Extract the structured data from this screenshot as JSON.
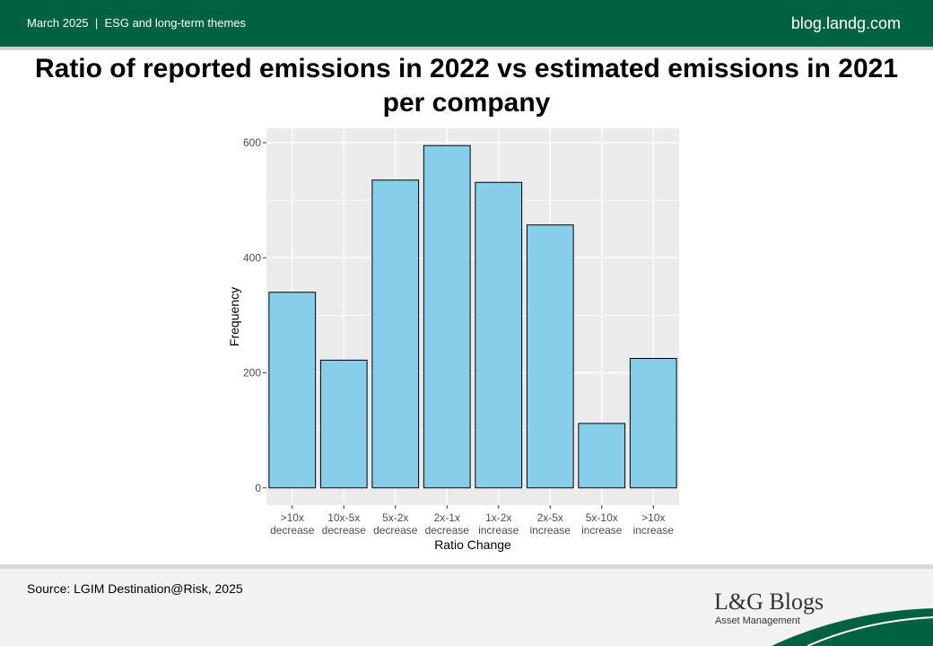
{
  "header": {
    "date": "March 2025",
    "topic": "ESG and long-term themes",
    "site": "blog.landg.com"
  },
  "title": "Ratio of reported emissions in 2022 vs estimated emissions in 2021 per company",
  "chart_data": {
    "type": "bar",
    "categories": [
      ">10x decrease",
      "10x-5x decrease",
      "5x-2x decrease",
      "2x-1x decrease",
      "1x-2x increase",
      "2x-5x increase",
      "5x-10x increase",
      ">10x increase"
    ],
    "category_lines": [
      [
        ">10x",
        "decrease"
      ],
      [
        "10x-5x",
        "decrease"
      ],
      [
        "5x-2x",
        "decrease"
      ],
      [
        "2x-1x",
        "decrease"
      ],
      [
        "1x-2x",
        "increase"
      ],
      [
        "2x-5x",
        "increase"
      ],
      [
        "5x-10x",
        "increase"
      ],
      [
        ">10x",
        "increase"
      ]
    ],
    "values": [
      340,
      222,
      535,
      595,
      531,
      457,
      112,
      225
    ],
    "xlabel": "Ratio Change",
    "ylabel": "Frequency",
    "ylim": [
      -30,
      625
    ],
    "yticks": [
      0,
      200,
      400,
      600
    ],
    "grid": true,
    "bar_color": "#87ceeb",
    "bar_border": "#000000",
    "panel_bg": "#ebebeb",
    "grid_color": "#ffffff"
  },
  "footer": {
    "source": "Source: LGIM Destination@Risk, 2025"
  },
  "logo": {
    "brand": "L&G Blogs",
    "sub": "Asset Management"
  },
  "colors": {
    "brand_green": "#006241"
  }
}
